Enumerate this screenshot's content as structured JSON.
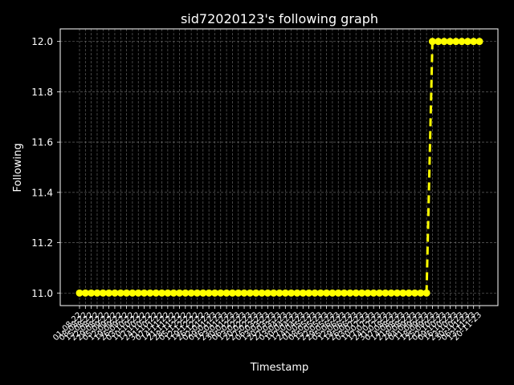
{
  "colors": {
    "background": "#000000",
    "text": "#ffffff",
    "grid": "#b0b0b0",
    "series": "#ffff00"
  },
  "chart_data": {
    "type": "line",
    "title": "sid72020123's following graph",
    "xlabel": "Timestamp",
    "ylabel": "Following",
    "ylim": [
      10.95,
      12.05
    ],
    "yticks": [
      "11.0",
      "11.2",
      "11.4",
      "11.6",
      "11.8",
      "12.0"
    ],
    "ytick_values": [
      11.0,
      11.2,
      11.4,
      11.6,
      11.8,
      12.0
    ],
    "grid": true,
    "line_style": "dashed",
    "marker": "circle",
    "x": [
      "01-08-22",
      "08-08-22",
      "15-08-22",
      "22-08-22",
      "29-08-22",
      "05-09-22",
      "12-09-22",
      "19-09-22",
      "26-09-22",
      "03-10-22",
      "10-10-22",
      "17-10-22",
      "24-10-22",
      "31-10-22",
      "07-11-22",
      "14-11-22",
      "21-11-22",
      "28-11-22",
      "05-12-22",
      "12-12-22",
      "19-12-22",
      "26-12-22",
      "02-01-23",
      "09-01-23",
      "16-01-23",
      "23-01-23",
      "30-01-23",
      "06-02-23",
      "13-02-23",
      "20-02-23",
      "27-02-23",
      "06-03-23",
      "13-03-23",
      "20-03-23",
      "27-03-23",
      "03-04-23",
      "10-04-23",
      "17-04-23",
      "24-04-23",
      "01-05-23",
      "08-05-23",
      "15-05-23",
      "22-05-23",
      "29-05-23",
      "05-06-23",
      "12-06-23",
      "19-06-23",
      "26-06-23",
      "03-07-23",
      "10-07-23",
      "17-07-23",
      "24-07-23",
      "31-07-23",
      "07-08-23",
      "14-08-23",
      "21-08-23",
      "28-08-23",
      "04-09-23",
      "11-09-23",
      "18-09-23",
      "25-09-23",
      "02-10-23",
      "09-10-23",
      "16-10-23",
      "23-10-23",
      "30-10-23",
      "06-11-23",
      "13-11-23",
      "20-11-23"
    ],
    "y": [
      11,
      11,
      11,
      11,
      11,
      11,
      11,
      11,
      11,
      11,
      11,
      11,
      11,
      11,
      11,
      11,
      11,
      11,
      11,
      11,
      11,
      11,
      11,
      11,
      11,
      11,
      11,
      11,
      11,
      11,
      11,
      11,
      11,
      11,
      11,
      11,
      11,
      11,
      11,
      11,
      11,
      11,
      11,
      11,
      11,
      11,
      11,
      11,
      11,
      11,
      11,
      11,
      11,
      11,
      11,
      11,
      11,
      11,
      11,
      11,
      12,
      12,
      12,
      12,
      12,
      12,
      12,
      12,
      12
    ],
    "xtick_labels": [
      "01-08-22",
      "08-08-22",
      "15-08-22",
      "22-08-22",
      "29-08-22",
      "05-09-22",
      "12-09-22",
      "19-09-22",
      "26-09-22",
      "03-10-22",
      "10-10-22",
      "17-10-22",
      "24-10-22",
      "31-10-22",
      "07-11-22",
      "14-11-22",
      "21-11-22",
      "28-11-22",
      "05-12-22",
      "12-12-22",
      "19-12-22",
      "26-12-22",
      "02-01-23",
      "09-01-23",
      "16-01-23",
      "23-01-23",
      "30-01-23",
      "06-02-23",
      "13-02-23",
      "20-02-23",
      "27-02-23",
      "06-03-23",
      "13-03-23",
      "20-03-23",
      "27-03-23",
      "03-04-23",
      "10-04-23",
      "17-04-23",
      "24-04-23",
      "01-05-23",
      "08-05-23",
      "15-05-23",
      "22-05-23",
      "29-05-23",
      "05-06-23",
      "12-06-23",
      "19-06-23",
      "26-06-23",
      "03-07-23",
      "10-07-23",
      "17-07-23",
      "24-07-23",
      "31-07-23",
      "07-08-23",
      "14-08-23",
      "21-08-23",
      "28-08-23",
      "04-09-23",
      "11-09-23",
      "18-09-23",
      "25-09-23",
      "02-10-23",
      "09-10-23",
      "16-10-23",
      "23-10-23",
      "30-10-23",
      "06-11-23",
      "13-11-23",
      "20-11-23"
    ]
  }
}
